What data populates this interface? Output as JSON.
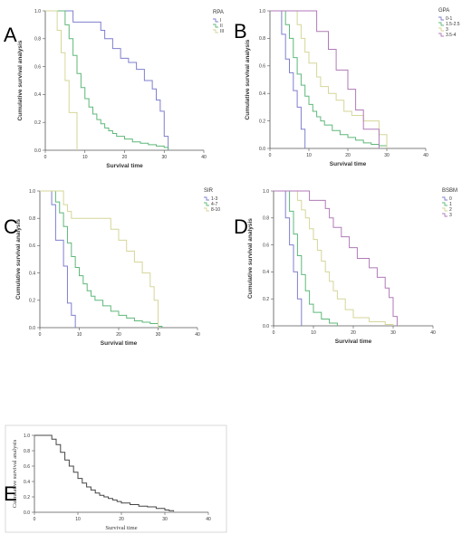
{
  "chart_data": [
    {
      "type": "line",
      "panel_letter": "A",
      "xlabel": "Survival time",
      "ylabel": "Cumulative survival analysis",
      "xlim": [
        0,
        40
      ],
      "ylim": [
        0,
        1.0
      ],
      "x_ticks": [
        0,
        10,
        20,
        30,
        40
      ],
      "y_ticks": [
        0.0,
        0.2,
        0.4,
        0.6,
        0.8,
        1.0
      ],
      "step": true,
      "legend_title": "RPA",
      "legend_position": "top-right",
      "series": [
        {
          "name": "I",
          "color": "#7f7fcf",
          "x": [
            0,
            6,
            7,
            13,
            14,
            15,
            17,
            19,
            21,
            23,
            25,
            26,
            27,
            28,
            29,
            30,
            31
          ],
          "y": [
            1.0,
            1.0,
            0.92,
            0.92,
            0.86,
            0.8,
            0.73,
            0.66,
            0.63,
            0.58,
            0.5,
            0.5,
            0.44,
            0.36,
            0.28,
            0.1,
            0.0
          ]
        },
        {
          "name": "II",
          "color": "#5fb87a",
          "x": [
            0,
            4,
            5,
            6,
            7,
            8,
            9,
            10,
            11,
            12,
            13,
            14,
            15,
            16,
            17,
            18,
            20,
            22,
            24,
            26,
            28,
            30,
            31
          ],
          "y": [
            1.0,
            1.0,
            0.9,
            0.8,
            0.68,
            0.55,
            0.45,
            0.37,
            0.31,
            0.26,
            0.22,
            0.19,
            0.16,
            0.14,
            0.12,
            0.1,
            0.08,
            0.06,
            0.05,
            0.04,
            0.03,
            0.02,
            0.0
          ]
        },
        {
          "name": "III",
          "color": "#d6d69a",
          "x": [
            0,
            2,
            3,
            4,
            5,
            6,
            7,
            8
          ],
          "y": [
            1.0,
            1.0,
            0.86,
            0.7,
            0.5,
            0.27,
            0.27,
            0.0
          ]
        }
      ]
    },
    {
      "type": "line",
      "panel_letter": "B",
      "xlabel": "Survival time",
      "ylabel": "Cumulative survival analysis",
      "xlim": [
        0,
        40
      ],
      "ylim": [
        0,
        1.0
      ],
      "x_ticks": [
        0,
        10,
        20,
        30,
        40
      ],
      "y_ticks": [
        0.0,
        0.2,
        0.4,
        0.6,
        0.8,
        1.0
      ],
      "step": true,
      "legend_title": "GPA",
      "legend_position": "top-right",
      "series": [
        {
          "name": "0-1",
          "color": "#7f7fcf",
          "x": [
            0,
            2,
            3,
            4,
            5,
            6,
            7,
            8,
            9
          ],
          "y": [
            1.0,
            1.0,
            0.83,
            0.65,
            0.55,
            0.42,
            0.3,
            0.14,
            0.0
          ]
        },
        {
          "name": "1.5-2.5",
          "color": "#5fb87a",
          "x": [
            0,
            3,
            4,
            5,
            6,
            7,
            8,
            9,
            10,
            11,
            12,
            13,
            14,
            16,
            18,
            20,
            22,
            24,
            26,
            28,
            30
          ],
          "y": [
            1.0,
            1.0,
            0.9,
            0.8,
            0.66,
            0.54,
            0.46,
            0.38,
            0.32,
            0.27,
            0.23,
            0.2,
            0.17,
            0.13,
            0.1,
            0.08,
            0.06,
            0.04,
            0.03,
            0.02,
            0.0
          ]
        },
        {
          "name": "3",
          "color": "#d6d69a",
          "x": [
            0,
            6,
            7,
            8,
            9,
            10,
            12,
            13,
            15,
            17,
            19,
            21,
            24,
            28,
            30
          ],
          "y": [
            1.0,
            1.0,
            0.9,
            0.8,
            0.7,
            0.62,
            0.52,
            0.45,
            0.4,
            0.35,
            0.27,
            0.24,
            0.2,
            0.1,
            0.0
          ]
        },
        {
          "name": "3.5-4",
          "color": "#b07ab8",
          "x": [
            0,
            11,
            12,
            15,
            17,
            18,
            20,
            22,
            24,
            28
          ],
          "y": [
            1.0,
            1.0,
            0.85,
            0.72,
            0.57,
            0.57,
            0.43,
            0.28,
            0.14,
            0.0
          ]
        }
      ]
    },
    {
      "type": "line",
      "panel_letter": "C",
      "xlabel": "Survival time",
      "ylabel": "Cumulative survival analysis",
      "xlim": [
        0,
        40
      ],
      "ylim": [
        0,
        1.0
      ],
      "x_ticks": [
        0,
        10,
        20,
        30,
        40
      ],
      "y_ticks": [
        0.0,
        0.2,
        0.4,
        0.6,
        0.8,
        1.0
      ],
      "step": true,
      "legend_title": "SIR",
      "legend_position": "top-right",
      "series": [
        {
          "name": "1-3",
          "color": "#7f7fcf",
          "x": [
            0,
            2,
            3,
            4,
            6,
            7,
            8,
            9
          ],
          "y": [
            1.0,
            1.0,
            0.9,
            0.64,
            0.45,
            0.18,
            0.09,
            0.0
          ]
        },
        {
          "name": "4-7",
          "color": "#5fb87a",
          "x": [
            0,
            3,
            4,
            5,
            6,
            7,
            8,
            9,
            10,
            11,
            12,
            13,
            14,
            16,
            18,
            20,
            22,
            24,
            26,
            28,
            30,
            31
          ],
          "y": [
            1.0,
            1.0,
            0.92,
            0.84,
            0.74,
            0.62,
            0.52,
            0.44,
            0.38,
            0.32,
            0.27,
            0.23,
            0.2,
            0.16,
            0.12,
            0.09,
            0.07,
            0.05,
            0.04,
            0.03,
            0.01,
            0.0
          ]
        },
        {
          "name": "8-10",
          "color": "#d6d69a",
          "x": [
            0,
            5,
            6,
            7,
            8,
            9,
            12,
            18,
            20,
            22,
            24,
            26,
            28,
            29,
            30
          ],
          "y": [
            1.0,
            1.0,
            0.9,
            0.85,
            0.8,
            0.8,
            0.8,
            0.72,
            0.64,
            0.56,
            0.48,
            0.4,
            0.3,
            0.2,
            0.0
          ]
        }
      ]
    },
    {
      "type": "line",
      "panel_letter": "D",
      "xlabel": "Survival time",
      "ylabel": "Cumulative survival analysis",
      "xlim": [
        0,
        40
      ],
      "ylim": [
        0,
        1.0
      ],
      "x_ticks": [
        0,
        10,
        20,
        30,
        40
      ],
      "y_ticks": [
        0.0,
        0.2,
        0.4,
        0.6,
        0.8,
        1.0
      ],
      "step": true,
      "legend_title": "BSBM",
      "legend_position": "top-right",
      "series": [
        {
          "name": "0",
          "color": "#7f7fcf",
          "x": [
            0,
            2,
            3,
            4,
            5,
            6,
            7
          ],
          "y": [
            1.0,
            1.0,
            0.8,
            0.6,
            0.4,
            0.2,
            0.0
          ]
        },
        {
          "name": "1",
          "color": "#5fb87a",
          "x": [
            0,
            3,
            4,
            5,
            6,
            7,
            8,
            9,
            10,
            12,
            14,
            16
          ],
          "y": [
            1.0,
            1.0,
            0.85,
            0.68,
            0.52,
            0.38,
            0.26,
            0.16,
            0.1,
            0.05,
            0.02,
            0.0
          ]
        },
        {
          "name": "2",
          "color": "#d6d69a",
          "x": [
            0,
            5,
            6,
            7,
            8,
            9,
            10,
            11,
            12,
            13,
            14,
            15,
            16,
            18,
            20,
            24,
            28,
            30
          ],
          "y": [
            1.0,
            1.0,
            0.93,
            0.86,
            0.8,
            0.72,
            0.64,
            0.56,
            0.48,
            0.4,
            0.33,
            0.26,
            0.2,
            0.12,
            0.06,
            0.03,
            0.01,
            0.0
          ]
        },
        {
          "name": "3",
          "color": "#b07ab8",
          "x": [
            0,
            8,
            9,
            13,
            14,
            15,
            17,
            19,
            21,
            24,
            26,
            28,
            29,
            30,
            31
          ],
          "y": [
            1.0,
            1.0,
            0.93,
            0.87,
            0.8,
            0.73,
            0.66,
            0.58,
            0.5,
            0.43,
            0.36,
            0.28,
            0.21,
            0.07,
            0.0
          ]
        }
      ]
    },
    {
      "type": "line",
      "panel_letter": "E",
      "xlabel": "Survival time",
      "ylabel": "Cumulative survival analysis",
      "xlim": [
        0,
        40
      ],
      "ylim": [
        0,
        1.0
      ],
      "x_ticks": [
        0,
        10,
        20,
        30,
        40
      ],
      "y_ticks": [
        0.0,
        0.2,
        0.4,
        0.6,
        0.8,
        1.0
      ],
      "step": true,
      "series": [
        {
          "name": "",
          "color": "#444444",
          "x": [
            0,
            3,
            4,
            5,
            6,
            7,
            8,
            9,
            10,
            11,
            12,
            13,
            14,
            15,
            16,
            17,
            18,
            19,
            20,
            22,
            24,
            26,
            28,
            30,
            31,
            32
          ],
          "y": [
            1.0,
            1.0,
            0.95,
            0.88,
            0.78,
            0.68,
            0.6,
            0.52,
            0.44,
            0.38,
            0.33,
            0.29,
            0.25,
            0.22,
            0.2,
            0.18,
            0.16,
            0.14,
            0.12,
            0.1,
            0.08,
            0.07,
            0.05,
            0.03,
            0.02,
            0.01
          ]
        }
      ]
    }
  ]
}
